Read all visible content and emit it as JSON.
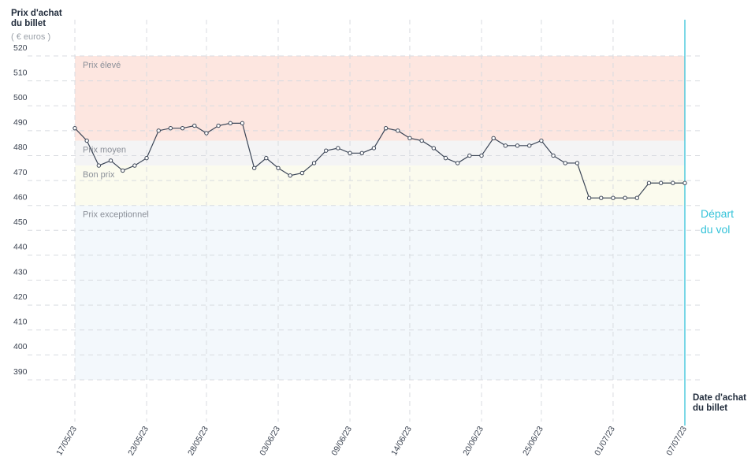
{
  "chart_data": {
    "type": "line",
    "y_title": "Prix d'achat du billet",
    "y_unit": "( € euros )",
    "x_title": "Date d'achat du billet",
    "ylim": [
      390,
      520
    ],
    "yticks": [
      390,
      400,
      410,
      420,
      430,
      440,
      450,
      460,
      470,
      480,
      490,
      500,
      510,
      520
    ],
    "xlim": [
      "17/05/23",
      "07/07/23"
    ],
    "xticks": [
      "17/05/23",
      "23/05/23",
      "28/05/23",
      "03/06/23",
      "09/06/23",
      "14/06/23",
      "20/06/23",
      "25/06/23",
      "01/07/23",
      "07/07/23"
    ],
    "grid": true,
    "bands": [
      {
        "label": "Prix élevé",
        "from": 486,
        "to": 520,
        "color": "#fde6e0"
      },
      {
        "label": "Prix moyen",
        "from": 476,
        "to": 486,
        "color": "#f4f4f5"
      },
      {
        "label": "Bon prix",
        "from": 460,
        "to": 476,
        "color": "#fbfbee"
      },
      {
        "label": "Prix exceptionnel",
        "from": 390,
        "to": 460,
        "color": "#f3f8fc"
      }
    ],
    "marker": {
      "x": "07/07/23",
      "label": "Départ du vol",
      "color": "#35c3d9"
    },
    "x": [
      "17/05/23",
      "18/05/23",
      "19/05/23",
      "20/05/23",
      "21/05/23",
      "22/05/23",
      "23/05/23",
      "24/05/23",
      "25/05/23",
      "26/05/23",
      "27/05/23",
      "28/05/23",
      "29/05/23",
      "30/05/23",
      "31/05/23",
      "01/06/23",
      "02/06/23",
      "03/06/23",
      "04/06/23",
      "05/06/23",
      "06/06/23",
      "07/06/23",
      "08/06/23",
      "09/06/23",
      "10/06/23",
      "11/06/23",
      "12/06/23",
      "13/06/23",
      "14/06/23",
      "15/06/23",
      "16/06/23",
      "17/06/23",
      "18/06/23",
      "19/06/23",
      "20/06/23",
      "21/06/23",
      "22/06/23",
      "23/06/23",
      "24/06/23",
      "25/06/23",
      "26/06/23",
      "27/06/23",
      "28/06/23",
      "29/06/23",
      "30/06/23",
      "01/07/23",
      "02/07/23",
      "03/07/23",
      "04/07/23",
      "05/07/23",
      "06/07/23",
      "07/07/23"
    ],
    "series": [
      {
        "color": "#3b4556",
        "values": [
          491,
          486,
          476,
          478,
          474,
          476,
          479,
          490,
          491,
          491,
          492,
          489,
          492,
          493,
          493,
          475,
          479,
          475,
          472,
          473,
          477,
          482,
          483,
          481,
          481,
          483,
          491,
          490,
          487,
          486,
          483,
          479,
          477,
          480,
          480,
          487,
          484,
          484,
          484,
          486,
          480,
          477,
          477,
          463,
          463,
          463,
          463,
          463,
          469,
          469,
          469,
          469
        ]
      }
    ]
  }
}
